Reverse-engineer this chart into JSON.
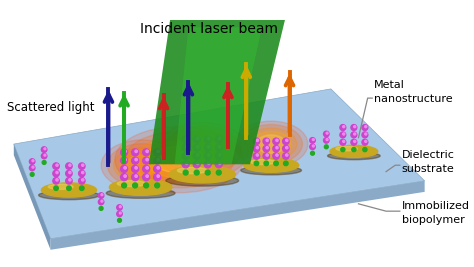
{
  "title": "Incident laser beam",
  "scattered_light_label": "Scattered light",
  "labels": {
    "metal": "Metal\nnanostructure",
    "dielectric": "Dielectric\nsubstrate",
    "immobilized": "Immobilized\nbiopolymer"
  },
  "background_color": "#ffffff",
  "substrate_top_color": "#a8c8e8",
  "substrate_side_color": "#7898b8",
  "disk_color": "#c8a820",
  "glow_color": "#ff8800",
  "laser_color": "#1a8a1a",
  "biopolymer_body": "#cc44cc",
  "biopolymer_base": "#22aa22",
  "label_font_size": 8,
  "title_font_size": 10
}
